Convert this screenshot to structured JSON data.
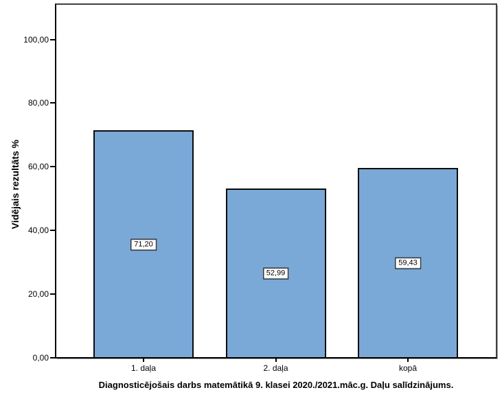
{
  "chart_data": {
    "type": "bar",
    "title": "Diagnosticējošais darbs matemātikā 9. klasei 2020./2021.māc.g. Daļu salīdzinājums.",
    "ylabel": "Vidējais rezultāts %",
    "xlabel": "",
    "categories": [
      "1. daļa",
      "2. daļa",
      "kopā"
    ],
    "values": [
      71.2,
      52.99,
      59.43
    ],
    "value_labels": [
      "71,20",
      "52,99",
      "59,43"
    ],
    "yticks": [
      0,
      20,
      40,
      60,
      80,
      100
    ],
    "ytick_labels": [
      "0,00",
      "20,00",
      "40,00",
      "60,00",
      "80,00",
      "100,00"
    ],
    "ylim": [
      0,
      110.7
    ],
    "grid": false,
    "legend": "none",
    "bar_fill": "#7BA9D7",
    "bar_border": "#0A0A0A",
    "value_box_bg": "#FFFFFF",
    "value_box_border": "#000000"
  }
}
